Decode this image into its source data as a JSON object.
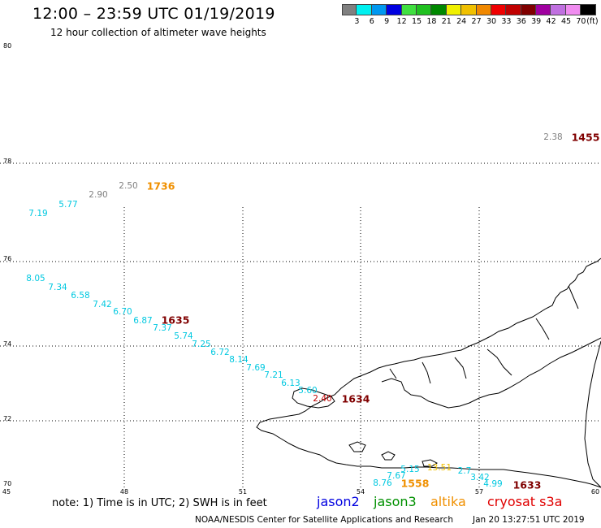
{
  "header": {
    "title": "12:00 – 23:59 UTC 01/19/2019",
    "subtitle": "12 hour collection of altimeter wave heights"
  },
  "legend": {
    "unit": "(ft)",
    "colors": [
      "#808080",
      "#00f0f0",
      "#0098f0",
      "#0000e0",
      "#40e040",
      "#20c020",
      "#008800",
      "#f0f000",
      "#f0c000",
      "#f08800",
      "#f00000",
      "#c00000",
      "#800000",
      "#a000a0",
      "#c070e0",
      "#f08cf0",
      "#000000"
    ],
    "labels": [
      "3",
      "6",
      "9",
      "12",
      "15",
      "18",
      "21",
      "24",
      "27",
      "30",
      "33",
      "36",
      "39",
      "42",
      "45",
      "70"
    ]
  },
  "axes": {
    "lat_labels": [
      "80",
      "78",
      "76",
      "74",
      "72",
      "70"
    ],
    "lon_labels": [
      "45",
      "48",
      "51",
      "54",
      "57",
      "60"
    ]
  },
  "map": {
    "region": "Greenland west coast",
    "coastline_color": "#000000",
    "grid": "dotted"
  },
  "passes": [
    {
      "satellite": "altika",
      "color": "#f09000",
      "time": "1736",
      "values": [
        {
          "v": "7.19",
          "color": "#00c8e0"
        },
        {
          "v": "5.77",
          "color": "#00c8e0"
        },
        {
          "v": "2.90",
          "color": "#808080"
        },
        {
          "v": "2.50",
          "color": "#808080"
        }
      ]
    },
    {
      "satellite": "cryosat",
      "color": "#800000",
      "time": "1635",
      "values": [
        {
          "v": "8.05",
          "color": "#00c8e0"
        },
        {
          "v": "7.34",
          "color": "#00c8e0"
        },
        {
          "v": "6.58",
          "color": "#00c8e0"
        },
        {
          "v": "7.42",
          "color": "#00c8e0"
        },
        {
          "v": "6.70",
          "color": "#00c8e0"
        },
        {
          "v": "6.87",
          "color": "#00c8e0"
        }
      ]
    },
    {
      "satellite": "cryosat",
      "color": "#800000",
      "time": "1634",
      "values": [
        {
          "v": "7.37",
          "color": "#00c8e0"
        },
        {
          "v": "5.74",
          "color": "#00c8e0"
        },
        {
          "v": "7.25",
          "color": "#00c8e0"
        },
        {
          "v": "6.72",
          "color": "#00c8e0"
        },
        {
          "v": "8.14",
          "color": "#00c8e0"
        },
        {
          "v": "7.69",
          "color": "#00c8e0"
        },
        {
          "v": "7.21",
          "color": "#00c8e0"
        },
        {
          "v": "6.13",
          "color": "#00c8e0"
        },
        {
          "v": "5.60",
          "color": "#00c8e0"
        },
        {
          "v": "2.40",
          "color": "#c00000"
        }
      ]
    },
    {
      "satellite": "cryosat",
      "color": "#800000",
      "time": "1455",
      "values": [
        {
          "v": "2.38",
          "color": "#808080"
        }
      ]
    },
    {
      "satellite": "altika",
      "color": "#f09000",
      "time": "1558",
      "values": [
        {
          "v": "8.76",
          "color": "#00c8e0"
        },
        {
          "v": "7.67",
          "color": "#00c8e0"
        },
        {
          "v": "5.15",
          "color": "#00c8e0"
        },
        {
          "v": "13.51",
          "color": "#f0c000"
        }
      ]
    },
    {
      "satellite": "cryosat",
      "color": "#800000",
      "time": "1633",
      "values": [
        {
          "v": "2.7",
          "color": "#00c8e0"
        },
        {
          "v": "3.42",
          "color": "#00c8e0"
        },
        {
          "v": "4.99",
          "color": "#00c8e0"
        }
      ]
    }
  ],
  "footer": {
    "note": "note: 1) Time is in UTC; 2) SWH is in feet",
    "satellites": [
      {
        "name": "jason2",
        "color": "#0000e0"
      },
      {
        "name": "jason3",
        "color": "#009000"
      },
      {
        "name": "altika",
        "color": "#f09000"
      },
      {
        "name": "cryosat s3a",
        "color": "#e00000"
      }
    ],
    "credit": "NOAA/NESDIS Center for Satellite Applications and Research",
    "date": "Jan 20 13:27:51 UTC 2019"
  }
}
